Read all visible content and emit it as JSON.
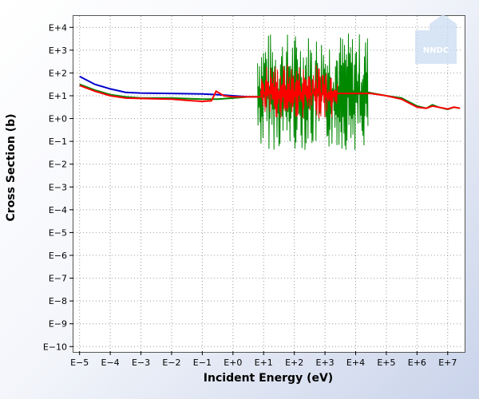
{
  "chart_data": {
    "type": "line",
    "xlabel": "Incident Energy (eV)",
    "ylabel": "Cross Section (b)",
    "x_scale": "log",
    "y_scale": "log",
    "xlim_log10": [
      -5.2,
      7.5
    ],
    "ylim_log10": [
      -10.2,
      4.5
    ],
    "x_ticks": [
      {
        "label": "E−5",
        "log10": -5
      },
      {
        "label": "E−4",
        "log10": -4
      },
      {
        "label": "E−3",
        "log10": -3
      },
      {
        "label": "E−2",
        "log10": -2
      },
      {
        "label": "E−1",
        "log10": -1
      },
      {
        "label": "E+0",
        "log10": 0
      },
      {
        "label": "E+1",
        "log10": 1
      },
      {
        "label": "E+2",
        "log10": 2
      },
      {
        "label": "E+3",
        "log10": 3
      },
      {
        "label": "E+4",
        "log10": 4
      },
      {
        "label": "E+5",
        "log10": 5
      },
      {
        "label": "E+6",
        "log10": 6
      },
      {
        "label": "E+7",
        "log10": 7
      }
    ],
    "y_ticks": [
      {
        "label": "E+4",
        "log10": 4
      },
      {
        "label": "E+3",
        "log10": 3
      },
      {
        "label": "E+2",
        "log10": 2
      },
      {
        "label": "E+1",
        "log10": 1
      },
      {
        "label": "E+0",
        "log10": 0
      },
      {
        "label": "E−1",
        "log10": -1
      },
      {
        "label": "E−2",
        "log10": -2
      },
      {
        "label": "E−3",
        "log10": -3
      },
      {
        "label": "E−4",
        "log10": -4
      },
      {
        "label": "E−5",
        "log10": -5
      },
      {
        "label": "E−6",
        "log10": -6
      },
      {
        "label": "E−7",
        "log10": -7
      },
      {
        "label": "E−8",
        "log10": -8
      },
      {
        "label": "E−9",
        "log10": -9
      },
      {
        "label": "E−10",
        "log10": -10
      }
    ],
    "grid": true,
    "legend": "none",
    "series": [
      {
        "color": "#0000cc",
        "points": [
          [
            -5.0,
            1.85
          ],
          [
            -4.5,
            1.5
          ],
          [
            -4.0,
            1.3
          ],
          [
            -3.5,
            1.15
          ],
          [
            -3.0,
            1.12
          ],
          [
            -2.0,
            1.1
          ],
          [
            -1.0,
            1.08
          ],
          [
            -0.5,
            1.05
          ],
          [
            0.0,
            1.0
          ],
          [
            0.5,
            0.95
          ],
          [
            0.8,
            0.95
          ],
          [
            0.9,
            1.15
          ],
          [
            1.0,
            1.05
          ]
        ]
      },
      {
        "color": "#008800",
        "points": [
          [
            -5.0,
            1.5
          ],
          [
            -4.5,
            1.25
          ],
          [
            -4.0,
            1.05
          ],
          [
            -3.5,
            0.95
          ],
          [
            -3.0,
            0.9
          ],
          [
            -2.0,
            0.9
          ],
          [
            -1.0,
            0.85
          ],
          [
            -0.5,
            0.85
          ],
          [
            0.0,
            0.9
          ],
          [
            0.5,
            0.95
          ],
          [
            0.8,
            0.95
          ]
        ],
        "resonance_region_log10": [
          0.8,
          4.4
        ],
        "resonance_envelope_log10": [
          -1.4,
          3.8
        ],
        "tail_points": [
          [
            4.4,
            1.15
          ],
          [
            4.8,
            1.05
          ],
          [
            5.0,
            1.0
          ],
          [
            5.5,
            0.9
          ],
          [
            6.0,
            0.55
          ],
          [
            6.3,
            0.45
          ],
          [
            6.5,
            0.6
          ],
          [
            6.7,
            0.5
          ],
          [
            7.0,
            0.4
          ],
          [
            7.2,
            0.5
          ],
          [
            7.4,
            0.45
          ]
        ]
      },
      {
        "color": "#ff0000",
        "points": [
          [
            -5.0,
            1.45
          ],
          [
            -4.5,
            1.2
          ],
          [
            -4.0,
            1.0
          ],
          [
            -3.5,
            0.9
          ],
          [
            -3.0,
            0.88
          ],
          [
            -2.0,
            0.85
          ],
          [
            -1.5,
            0.8
          ],
          [
            -1.0,
            0.75
          ],
          [
            -0.7,
            0.78
          ],
          [
            -0.55,
            1.2
          ],
          [
            -0.3,
            1.0
          ],
          [
            0.0,
            0.95
          ],
          [
            0.5,
            0.95
          ],
          [
            0.9,
            0.95
          ]
        ],
        "resonance_region_log10": [
          0.9,
          3.4
        ],
        "resonance_envelope_log10": [
          0.0,
          2.4
        ],
        "tail_points": [
          [
            3.4,
            1.1
          ],
          [
            4.0,
            1.1
          ],
          [
            4.5,
            1.1
          ],
          [
            5.0,
            1.0
          ],
          [
            5.5,
            0.85
          ],
          [
            6.0,
            0.5
          ],
          [
            6.3,
            0.45
          ],
          [
            6.5,
            0.55
          ],
          [
            6.7,
            0.5
          ],
          [
            7.0,
            0.42
          ],
          [
            7.2,
            0.5
          ],
          [
            7.4,
            0.45
          ]
        ]
      }
    ]
  },
  "watermark": {
    "text": "NNDC"
  }
}
